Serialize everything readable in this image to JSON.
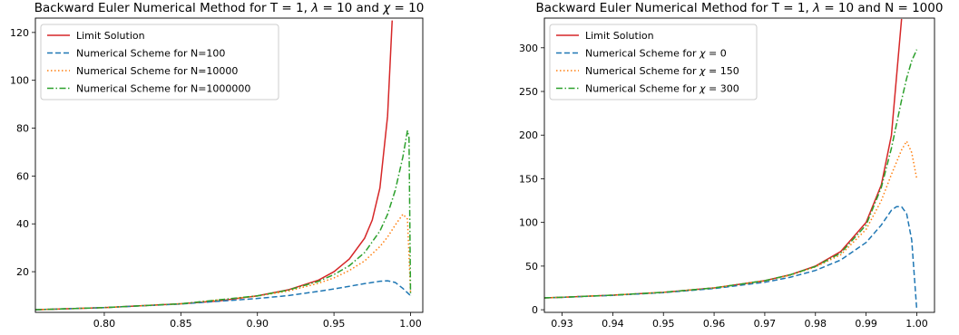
{
  "chart_data": [
    {
      "type": "line",
      "title_prefix": "Backward Euler Numerical Method for T = 1, ",
      "title_math": "λ",
      "title_mid": " = 10 and ",
      "title_math2": "χ",
      "title_suffix": " = 10",
      "xlim": [
        0.755,
        1.008
      ],
      "ylim": [
        3.0,
        126.0
      ],
      "xticks": [
        0.8,
        0.85,
        0.9,
        0.95,
        1.0
      ],
      "xtick_labels": [
        "0.80",
        "0.85",
        "0.90",
        "0.95",
        "1.00"
      ],
      "yticks": [
        20,
        40,
        60,
        80,
        100,
        120
      ],
      "ytick_labels": [
        "20",
        "40",
        "60",
        "80",
        "100",
        "120"
      ],
      "legend_position": "upper-left",
      "series": [
        {
          "name": "Limit Solution",
          "color": "#d62728",
          "style": "solid",
          "x": [
            0.755,
            0.8,
            0.85,
            0.875,
            0.9,
            0.92,
            0.94,
            0.95,
            0.96,
            0.97,
            0.975,
            0.98,
            0.985,
            0.988
          ],
          "y": [
            4.1,
            5.0,
            6.6,
            7.8,
            9.9,
            12.4,
            16.5,
            20.0,
            25.3,
            34.0,
            41.6,
            55.0,
            85.0,
            125.0
          ]
        },
        {
          "name": "Numerical Scheme for N=100",
          "color": "#1f77b4",
          "style": "dashed",
          "x": [
            0.755,
            0.8,
            0.85,
            0.9,
            0.92,
            0.94,
            0.95,
            0.96,
            0.97,
            0.98,
            0.985,
            0.99,
            0.995,
            1.0
          ],
          "y": [
            4.1,
            5.0,
            6.5,
            8.8,
            10.0,
            11.8,
            12.8,
            13.9,
            15.0,
            16.0,
            16.2,
            15.5,
            13.0,
            10.0
          ]
        },
        {
          "name": "Numerical Scheme for N=10000",
          "color": "#ff7f0e",
          "style": "dotted",
          "x": [
            0.755,
            0.8,
            0.85,
            0.9,
            0.92,
            0.94,
            0.95,
            0.96,
            0.97,
            0.98,
            0.985,
            0.99,
            0.995,
            0.998,
            1.0
          ],
          "y": [
            4.1,
            5.0,
            6.6,
            9.8,
            11.9,
            15.2,
            17.4,
            20.5,
            24.5,
            30.5,
            34.5,
            39.5,
            44.0,
            42.0,
            11.0
          ]
        },
        {
          "name": "Numerical Scheme for N=1000000",
          "color": "#2ca02c",
          "style": "dashdot",
          "x": [
            0.755,
            0.8,
            0.85,
            0.9,
            0.92,
            0.94,
            0.95,
            0.96,
            0.97,
            0.98,
            0.985,
            0.99,
            0.995,
            0.998,
            0.999,
            1.0
          ],
          "y": [
            4.1,
            5.0,
            6.6,
            9.9,
            12.3,
            16.0,
            18.8,
            22.5,
            28.0,
            37.0,
            44.0,
            54.0,
            68.0,
            79.0,
            76.0,
            10.0
          ]
        }
      ]
    },
    {
      "type": "line",
      "title_prefix": "Backward Euler Numerical Method for T = 1, ",
      "title_math": "λ",
      "title_mid": " = 10 and ",
      "title_math2": "",
      "title_suffix": "N = 1000",
      "xlim": [
        0.9265,
        1.0035
      ],
      "ylim": [
        -3.0,
        334.0
      ],
      "xticks": [
        0.93,
        0.94,
        0.95,
        0.96,
        0.97,
        0.98,
        0.99,
        1.0
      ],
      "xtick_labels": [
        "0.93",
        "0.94",
        "0.95",
        "0.96",
        "0.97",
        "0.98",
        "0.99",
        "1.00"
      ],
      "yticks": [
        0,
        50,
        100,
        150,
        200,
        250,
        300
      ],
      "ytick_labels": [
        "0",
        "50",
        "100",
        "150",
        "200",
        "250",
        "300"
      ],
      "legend_position": "upper-left",
      "series": [
        {
          "name_prefix": "Numerical Scheme for ",
          "name": "Limit Solution",
          "color": "#d62728",
          "style": "solid",
          "x": [
            0.9265,
            0.93,
            0.94,
            0.95,
            0.96,
            0.97,
            0.975,
            0.98,
            0.985,
            0.99,
            0.993,
            0.995,
            0.997
          ],
          "y": [
            13.6,
            14.3,
            16.7,
            20.0,
            25.0,
            33.3,
            40.0,
            50.0,
            66.7,
            100.0,
            142.9,
            200.0,
            333.0
          ]
        },
        {
          "name_prefix": "Numerical Scheme for ",
          "name_math": "χ",
          "name": " = 0",
          "color": "#1f77b4",
          "style": "dashed",
          "x": [
            0.9265,
            0.93,
            0.94,
            0.95,
            0.96,
            0.97,
            0.975,
            0.98,
            0.985,
            0.99,
            0.993,
            0.995,
            0.996,
            0.997,
            0.998,
            0.999,
            1.0
          ],
          "y": [
            13.6,
            14.2,
            16.5,
            19.6,
            24.3,
            31.5,
            37.2,
            45.0,
            57.0,
            77.0,
            97.0,
            114.0,
            118.0,
            118.0,
            110.0,
            80.0,
            0.0
          ]
        },
        {
          "name_prefix": "Numerical Scheme for ",
          "name_math": "χ",
          "name": " = 150",
          "color": "#ff7f0e",
          "style": "dotted",
          "x": [
            0.9265,
            0.93,
            0.94,
            0.95,
            0.96,
            0.97,
            0.975,
            0.98,
            0.985,
            0.99,
            0.993,
            0.995,
            0.997,
            0.998,
            0.999,
            1.0
          ],
          "y": [
            13.6,
            14.3,
            16.7,
            20.0,
            25.0,
            33.0,
            39.5,
            49.0,
            63.0,
            92.0,
            125.0,
            155.0,
            183.0,
            193.0,
            180.0,
            150.0
          ]
        },
        {
          "name_prefix": "Numerical Scheme for ",
          "name_math": "χ",
          "name": " = 300",
          "color": "#2ca02c",
          "style": "dashdot",
          "x": [
            0.9265,
            0.93,
            0.94,
            0.95,
            0.96,
            0.97,
            0.975,
            0.98,
            0.985,
            0.99,
            0.993,
            0.995,
            0.997,
            0.998,
            0.999,
            1.0
          ],
          "y": [
            13.6,
            14.3,
            16.7,
            20.0,
            25.0,
            33.3,
            40.0,
            49.5,
            65.0,
            97.0,
            140.0,
            185.0,
            240.0,
            265.0,
            285.0,
            298.0
          ]
        }
      ]
    }
  ]
}
